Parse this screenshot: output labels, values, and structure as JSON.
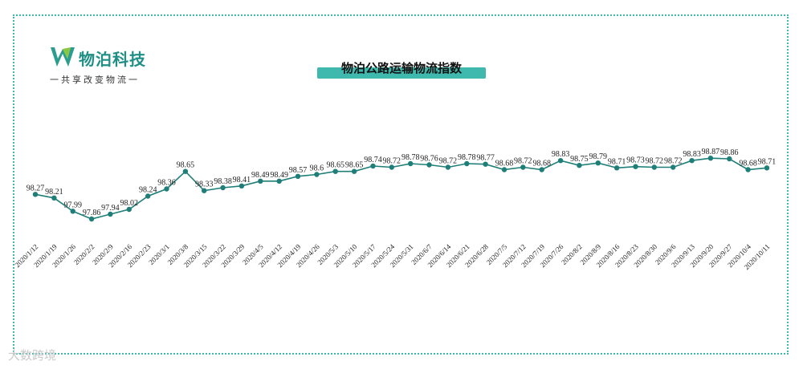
{
  "logo": {
    "name": "物泊科技",
    "slogan": "一共享改变物流一",
    "mark_color": "#2a9d8f"
  },
  "watermark": "大数跨境",
  "colors": {
    "line": "#1f7f78",
    "frame": "#3fb8ad",
    "title_bar": "#3fb8ad"
  },
  "chart_data": {
    "type": "line",
    "title": "物泊公路运输物流指数",
    "xlabel": "",
    "ylabel": "",
    "ylim": [
      97.5,
      99.1
    ],
    "grid": false,
    "legend": "none",
    "categories": [
      "2020/1/12",
      "2020/1/19",
      "2020/1/26",
      "2020/2/2",
      "2020/2/9",
      "2020/2/16",
      "2020/2/23",
      "2020/3/1",
      "2020/3/8",
      "2020/3/15",
      "2020/3/22",
      "2020/3/29",
      "2020/4/5",
      "2020/4/12",
      "2020/4/19",
      "2020/4/26",
      "2020/5/3",
      "2020/5/10",
      "2020/5/17",
      "2020/5/24",
      "2020/5/31",
      "2020/6/7",
      "2020/6/14",
      "2020/6/21",
      "2020/6/28",
      "2020/7/5",
      "2020/7/12",
      "2020/7/19",
      "2020/7/26",
      "2020/8/2",
      "2020/8/9",
      "2020/8/16",
      "2020/8/23",
      "2020/8/30",
      "2020/9/6",
      "2020/9/13",
      "2020/9/20",
      "2020/9/27",
      "2020/10/4",
      "2020/10/11"
    ],
    "series": [
      {
        "values": [
          98.27,
          98.21,
          97.99,
          97.86,
          97.94,
          98.02,
          98.24,
          98.36,
          98.65,
          98.33,
          98.38,
          98.41,
          98.49,
          98.49,
          98.57,
          98.6,
          98.65,
          98.65,
          98.74,
          98.72,
          98.78,
          98.76,
          98.72,
          98.78,
          98.77,
          98.68,
          98.72,
          98.68,
          98.83,
          98.75,
          98.79,
          98.71,
          98.73,
          98.72,
          98.72,
          98.83,
          98.87,
          98.86,
          98.68,
          98.71
        ],
        "labels": [
          "98.27",
          "98.21",
          "97.99",
          "97.86",
          "97.94",
          "98.02",
          "98.24",
          "98.36",
          "98.65",
          "98.33",
          "98.38",
          "98.41",
          "98.49",
          "98.49",
          "98.57",
          "98.6",
          "98.65",
          "98.65",
          "98.74",
          "98.72",
          "98.78",
          "98.76",
          "98.72",
          "98.78",
          "98.77",
          "98.68",
          "98.72",
          "98.68",
          "98.83",
          "98.75",
          "98.79",
          "98.71",
          "98.73",
          "98.72",
          "98.72",
          "98.83",
          "98.87",
          "98.86",
          "98.68",
          "98.71"
        ]
      }
    ]
  }
}
